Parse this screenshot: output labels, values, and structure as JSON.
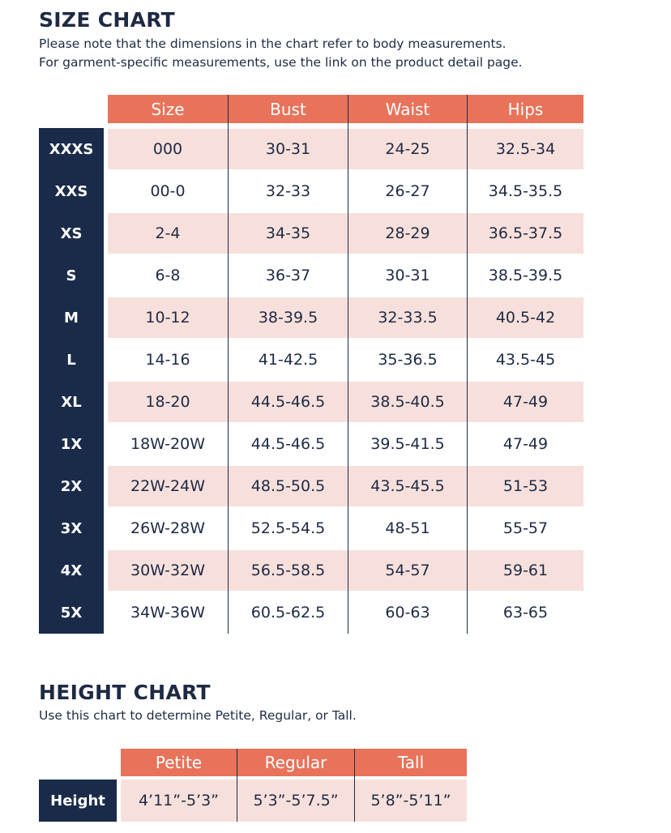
{
  "size_chart": {
    "title": "SIZE CHART",
    "note_line1": "Please note that the dimensions in the chart refer to body measurements.",
    "note_line2": "For garment-specific measurements, use the link on the product detail page.",
    "headers": [
      "Size",
      "Bust",
      "Waist",
      "Hips"
    ],
    "rows": [
      {
        "label": "XXXS",
        "cells": [
          "000",
          "30-31",
          "24-25",
          "32.5-34"
        ]
      },
      {
        "label": "XXS",
        "cells": [
          "00-0",
          "32-33",
          "26-27",
          "34.5-35.5"
        ]
      },
      {
        "label": "XS",
        "cells": [
          "2-4",
          "34-35",
          "28-29",
          "36.5-37.5"
        ]
      },
      {
        "label": "S",
        "cells": [
          "6-8",
          "36-37",
          "30-31",
          "38.5-39.5"
        ]
      },
      {
        "label": "M",
        "cells": [
          "10-12",
          "38-39.5",
          "32-33.5",
          "40.5-42"
        ]
      },
      {
        "label": "L",
        "cells": [
          "14-16",
          "41-42.5",
          "35-36.5",
          "43.5-45"
        ]
      },
      {
        "label": "XL",
        "cells": [
          "18-20",
          "44.5-46.5",
          "38.5-40.5",
          "47-49"
        ]
      },
      {
        "label": "1X",
        "cells": [
          "18W-20W",
          "44.5-46.5",
          "39.5-41.5",
          "47-49"
        ]
      },
      {
        "label": "2X",
        "cells": [
          "22W-24W",
          "48.5-50.5",
          "43.5-45.5",
          "51-53"
        ]
      },
      {
        "label": "3X",
        "cells": [
          "26W-28W",
          "52.5-54.5",
          "48-51",
          "55-57"
        ]
      },
      {
        "label": "4X",
        "cells": [
          "30W-32W",
          "56.5-58.5",
          "54-57",
          "59-61"
        ]
      },
      {
        "label": "5X",
        "cells": [
          "34W-36W",
          "60.5-62.5",
          "60-63",
          "63-65"
        ]
      }
    ]
  },
  "height_chart": {
    "title": "HEIGHT CHART",
    "note": "Use this chart to determine Petite, Regular, or Tall.",
    "headers": [
      "Petite",
      "Regular",
      "Tall"
    ],
    "row_label": "Height",
    "cells": [
      "4’11”-5’3”",
      "5’3”-5’7.5”",
      "5’8”-5’11”"
    ]
  },
  "colors": {
    "header": "#e8735a",
    "shaded_row": "#f7e0dc",
    "side_column": "#1a2b4a",
    "text": "#1e2a44"
  }
}
